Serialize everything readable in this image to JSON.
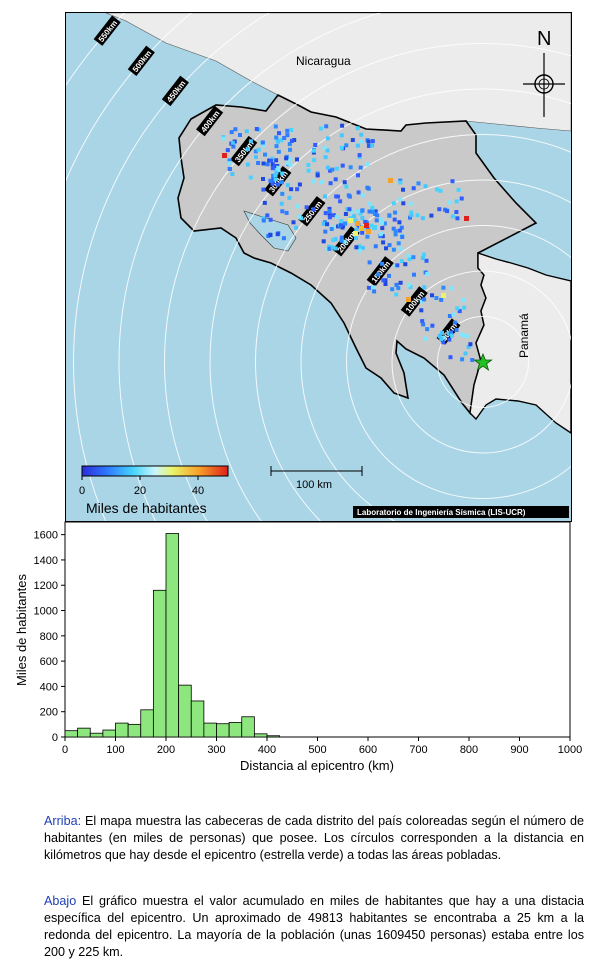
{
  "map": {
    "countries": [
      "Nicaragua",
      "Panamá"
    ],
    "north_label": "N",
    "distance_rings": [
      "50km",
      "100km",
      "150km",
      "200km",
      "250km",
      "300km",
      "350km",
      "400km",
      "450km",
      "500km",
      "550km"
    ],
    "colorbar": {
      "ticks": [
        "0",
        "20",
        "40"
      ],
      "label": "Miles de habitantes",
      "range": [
        0,
        50
      ]
    },
    "scale_label": "100 km",
    "credit": "Laboratorio de Ingeniería Sísmica (LIS-UCR)",
    "colors": {
      "sea": "#a9d5e6",
      "land_cr": "#c9c9c9",
      "land_other": "#ececec",
      "epicenter": "#22c025"
    }
  },
  "chart_data": {
    "type": "bar",
    "xlabel": "Distancia al epicentro (km)",
    "ylabel": "Miles de habitantes",
    "xlim": [
      0,
      1000
    ],
    "ylim": [
      0,
      1700
    ],
    "xticks": [
      "0",
      "100",
      "200",
      "300",
      "400",
      "500",
      "600",
      "700",
      "800",
      "900",
      "1000"
    ],
    "yticks": [
      "0",
      "200",
      "400",
      "600",
      "800",
      "1000",
      "1200",
      "1400",
      "1600"
    ],
    "bin_width": 25,
    "bin_starts": [
      0,
      25,
      50,
      75,
      100,
      125,
      150,
      175,
      200,
      225,
      250,
      275,
      300,
      325,
      350,
      375,
      400
    ],
    "values": [
      50,
      70,
      30,
      55,
      110,
      100,
      215,
      1160,
      1609,
      410,
      285,
      110,
      105,
      115,
      160,
      25,
      10
    ],
    "bar_color": "#8ee67e"
  },
  "captions": {
    "top_lead": "Arriba:",
    "top_text": " El mapa muestra las cabeceras de cada distrito del país coloreadas según el número de habitantes (en miles de personas) que posee.  Los círculos corresponden a la distancia en kilómetros que hay desde el epicentro (estrella verde) a todas las áreas pobladas.",
    "bottom_lead": "Abajo",
    "bottom_text": " El gráfico muestra el valor acumulado en miles de habitantes que hay a una distacia específica del epicentro.  Un aproximado de 49813 habitantes se encontraba a 25 km a la redonda del epicentro.  La mayoría de la población (unas 1609450 personas) estaba entre los 200 y 225 km."
  }
}
